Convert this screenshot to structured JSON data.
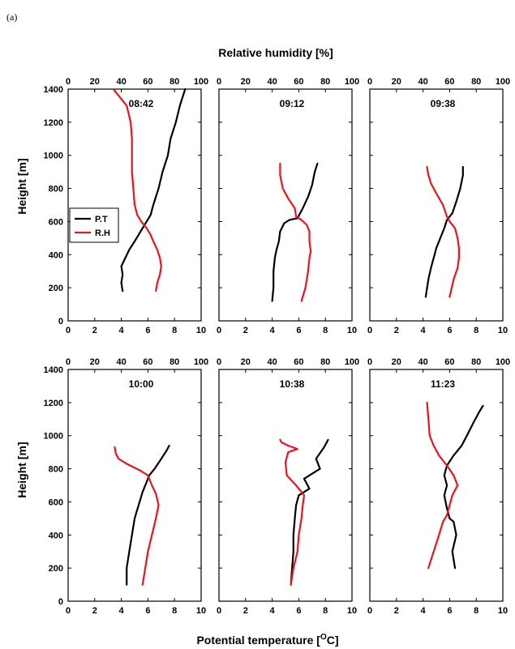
{
  "figure": {
    "label": "(a)",
    "top_axis_title": "Relative humidity [%]",
    "bottom_axis_title": "Potential temperature [",
    "bottom_axis_title_sup": "O",
    "bottom_axis_title_end": "C]",
    "y_axis_title": "Height [m]",
    "colors": {
      "P.T": "#000000",
      "R.H": "#e8141e"
    }
  },
  "chart_data": [
    {
      "type": "line",
      "title": "08:42",
      "x_label": "Potential temperature",
      "x2_label": "Relative humidity [%]",
      "ylabel": "Height [m]",
      "xlim": [
        0,
        10
      ],
      "x2lim": [
        0,
        100
      ],
      "ylim": [
        0,
        1400
      ],
      "x_ticks": [
        "0",
        "2",
        "4",
        "6",
        "8",
        "10"
      ],
      "x2_ticks": [
        "0",
        "20",
        "40",
        "60",
        "80",
        "100"
      ],
      "y_ticks": [
        "0",
        "200",
        "400",
        "600",
        "800",
        "1000",
        "1200",
        "1400"
      ],
      "legend": {
        "position": "left",
        "entries": [
          "P.T",
          "R.H"
        ]
      },
      "series": [
        {
          "name": "P.T",
          "axis": "bottom",
          "points": [
            [
              4.1,
              180
            ],
            [
              4.0,
              230
            ],
            [
              4.1,
              280
            ],
            [
              4.0,
              330
            ],
            [
              4.3,
              380
            ],
            [
              4.6,
              430
            ],
            [
              5.0,
              480
            ],
            [
              5.3,
              520
            ],
            [
              5.6,
              560
            ],
            [
              5.9,
              600
            ],
            [
              6.2,
              640
            ],
            [
              6.4,
              700
            ],
            [
              6.8,
              800
            ],
            [
              7.1,
              900
            ],
            [
              7.5,
              1000
            ],
            [
              7.7,
              1100
            ],
            [
              8.1,
              1200
            ],
            [
              8.4,
              1300
            ],
            [
              8.8,
              1400
            ]
          ]
        },
        {
          "name": "R.H",
          "axis": "top",
          "points": [
            [
              66,
              180
            ],
            [
              67,
              230
            ],
            [
              69,
              280
            ],
            [
              70,
              330
            ],
            [
              69,
              380
            ],
            [
              67,
              430
            ],
            [
              64,
              480
            ],
            [
              62,
              520
            ],
            [
              59,
              560
            ],
            [
              55,
              600
            ],
            [
              52,
              640
            ],
            [
              50,
              700
            ],
            [
              49,
              800
            ],
            [
              48,
              900
            ],
            [
              48,
              1000
            ],
            [
              48,
              1100
            ],
            [
              47,
              1200
            ],
            [
              44,
              1300
            ],
            [
              34,
              1400
            ]
          ]
        }
      ]
    },
    {
      "type": "line",
      "title": "09:12",
      "xlim": [
        0,
        10
      ],
      "x2lim": [
        0,
        100
      ],
      "ylim": [
        0,
        1400
      ],
      "x_ticks": [
        "0",
        "2",
        "4",
        "6",
        "8",
        "10"
      ],
      "x2_ticks": [
        "0",
        "20",
        "40",
        "60",
        "80",
        "100"
      ],
      "series": [
        {
          "name": "P.T",
          "axis": "bottom",
          "points": [
            [
              4.0,
              120
            ],
            [
              4.1,
              200
            ],
            [
              4.1,
              300
            ],
            [
              4.2,
              380
            ],
            [
              4.3,
              420
            ],
            [
              4.5,
              480
            ],
            [
              4.6,
              540
            ],
            [
              4.9,
              590
            ],
            [
              5.3,
              610
            ],
            [
              5.9,
              620
            ],
            [
              6.3,
              680
            ],
            [
              6.7,
              750
            ],
            [
              7.0,
              820
            ],
            [
              7.2,
              900
            ],
            [
              7.4,
              950
            ]
          ]
        },
        {
          "name": "R.H",
          "axis": "top",
          "points": [
            [
              62,
              120
            ],
            [
              65,
              200
            ],
            [
              67,
              300
            ],
            [
              68,
              380
            ],
            [
              69,
              420
            ],
            [
              68,
              480
            ],
            [
              68,
              540
            ],
            [
              66,
              580
            ],
            [
              62,
              610
            ],
            [
              58,
              630
            ],
            [
              57,
              680
            ],
            [
              52,
              740
            ],
            [
              48,
              800
            ],
            [
              46,
              880
            ],
            [
              46,
              950
            ]
          ]
        }
      ]
    },
    {
      "type": "line",
      "title": "09:38",
      "xlim": [
        0,
        10
      ],
      "x2lim": [
        0,
        100
      ],
      "ylim": [
        0,
        1400
      ],
      "x_ticks": [
        "0",
        "2",
        "4",
        "6",
        "8",
        "10"
      ],
      "x2_ticks": [
        "0",
        "20",
        "40",
        "60",
        "80",
        "100"
      ],
      "series": [
        {
          "name": "P.T",
          "axis": "bottom",
          "points": [
            [
              4.2,
              145
            ],
            [
              4.4,
              250
            ],
            [
              4.6,
              320
            ],
            [
              4.8,
              380
            ],
            [
              5.0,
              440
            ],
            [
              5.3,
              500
            ],
            [
              5.6,
              560
            ],
            [
              5.8,
              610
            ],
            [
              6.2,
              650
            ],
            [
              6.5,
              720
            ],
            [
              6.8,
              800
            ],
            [
              7.0,
              880
            ],
            [
              7.0,
              930
            ]
          ]
        },
        {
          "name": "R.H",
          "axis": "top",
          "points": [
            [
              60,
              145
            ],
            [
              63,
              250
            ],
            [
              66,
              320
            ],
            [
              67,
              380
            ],
            [
              67,
              440
            ],
            [
              66,
              500
            ],
            [
              64,
              560
            ],
            [
              60,
              600
            ],
            [
              58,
              630
            ],
            [
              55,
              700
            ],
            [
              50,
              770
            ],
            [
              46,
              830
            ],
            [
              44,
              880
            ],
            [
              43,
              930
            ]
          ]
        }
      ]
    },
    {
      "type": "line",
      "title": "10:00",
      "xlim": [
        0,
        10
      ],
      "x2lim": [
        0,
        100
      ],
      "ylim": [
        0,
        1400
      ],
      "x_ticks": [
        "0",
        "2",
        "4",
        "6",
        "8",
        "10"
      ],
      "x2_ticks": [
        "0",
        "20",
        "40",
        "60",
        "80",
        "100"
      ],
      "y_ticks": [
        "0",
        "200",
        "400",
        "600",
        "800",
        "1000",
        "1200",
        "1400"
      ],
      "series": [
        {
          "name": "P.T",
          "axis": "bottom",
          "points": [
            [
              4.4,
              100
            ],
            [
              4.4,
              200
            ],
            [
              4.6,
              300
            ],
            [
              4.8,
              400
            ],
            [
              5.0,
              500
            ],
            [
              5.3,
              580
            ],
            [
              5.6,
              660
            ],
            [
              5.9,
              720
            ],
            [
              6.1,
              760
            ],
            [
              6.5,
              800
            ],
            [
              7.0,
              860
            ],
            [
              7.4,
              910
            ],
            [
              7.6,
              940
            ]
          ]
        },
        {
          "name": "R.H",
          "axis": "top",
          "points": [
            [
              56,
              100
            ],
            [
              58,
              200
            ],
            [
              60,
              300
            ],
            [
              63,
              400
            ],
            [
              66,
              500
            ],
            [
              68,
              580
            ],
            [
              66,
              650
            ],
            [
              63,
              700
            ],
            [
              60,
              760
            ],
            [
              54,
              790
            ],
            [
              44,
              830
            ],
            [
              38,
              860
            ],
            [
              36,
              890
            ],
            [
              35,
              930
            ]
          ]
        }
      ]
    },
    {
      "type": "line",
      "title": "10:38",
      "xlim": [
        0,
        10
      ],
      "x2lim": [
        0,
        100
      ],
      "ylim": [
        0,
        1400
      ],
      "x_ticks": [
        "0",
        "2",
        "4",
        "6",
        "8",
        "10"
      ],
      "x2_ticks": [
        "0",
        "20",
        "40",
        "60",
        "80",
        "100"
      ],
      "series": [
        {
          "name": "P.T",
          "axis": "bottom",
          "points": [
            [
              5.4,
              100
            ],
            [
              5.5,
              200
            ],
            [
              5.6,
              300
            ],
            [
              5.6,
              400
            ],
            [
              5.7,
              500
            ],
            [
              5.8,
              580
            ],
            [
              6.0,
              640
            ],
            [
              6.8,
              680
            ],
            [
              6.4,
              740
            ],
            [
              7.6,
              800
            ],
            [
              7.3,
              860
            ],
            [
              7.9,
              930
            ],
            [
              8.2,
              975
            ]
          ]
        },
        {
          "name": "R.H",
          "axis": "top",
          "points": [
            [
              54,
              100
            ],
            [
              56,
              200
            ],
            [
              59,
              300
            ],
            [
              60,
              400
            ],
            [
              62,
              500
            ],
            [
              63,
              580
            ],
            [
              64,
              640
            ],
            [
              58,
              700
            ],
            [
              51,
              760
            ],
            [
              50,
              840
            ],
            [
              52,
              900
            ],
            [
              59,
              920
            ],
            [
              52,
              940
            ],
            [
              47,
              960
            ],
            [
              46,
              975
            ]
          ]
        }
      ]
    },
    {
      "type": "line",
      "title": "11:23",
      "xlim": [
        0,
        10
      ],
      "x2lim": [
        0,
        100
      ],
      "ylim": [
        0,
        1400
      ],
      "x_ticks": [
        "0",
        "2",
        "4",
        "6",
        "8",
        "10"
      ],
      "x2_ticks": [
        "0",
        "20",
        "40",
        "60",
        "80",
        "100"
      ],
      "series": [
        {
          "name": "P.T",
          "axis": "bottom",
          "points": [
            [
              6.4,
              200
            ],
            [
              6.2,
              300
            ],
            [
              6.5,
              400
            ],
            [
              6.3,
              480
            ],
            [
              6.0,
              500
            ],
            [
              5.8,
              560
            ],
            [
              5.6,
              640
            ],
            [
              5.8,
              700
            ],
            [
              5.6,
              760
            ],
            [
              5.8,
              820
            ],
            [
              6.3,
              880
            ],
            [
              6.9,
              940
            ],
            [
              7.3,
              1000
            ],
            [
              7.8,
              1080
            ],
            [
              8.2,
              1140
            ],
            [
              8.5,
              1180
            ]
          ]
        },
        {
          "name": "R.H",
          "axis": "top",
          "points": [
            [
              44,
              200
            ],
            [
              48,
              300
            ],
            [
              52,
              400
            ],
            [
              55,
              480
            ],
            [
              58,
              520
            ],
            [
              60,
              580
            ],
            [
              62,
              640
            ],
            [
              66,
              700
            ],
            [
              63,
              760
            ],
            [
              58,
              820
            ],
            [
              52,
              880
            ],
            [
              48,
              940
            ],
            [
              45,
              1000
            ],
            [
              44,
              1100
            ],
            [
              43,
              1200
            ]
          ]
        }
      ]
    }
  ]
}
